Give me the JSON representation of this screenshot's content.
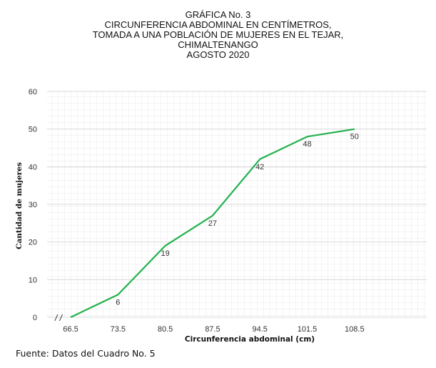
{
  "chart_data": {
    "type": "line",
    "title_lines": [
      "GRÁFICA No. 3",
      "CIRCUNFERENCIA ABDOMINAL  EN CENTÍMETROS,",
      "TOMADA A UNA POBLACIÓN DE MUJERES EN EL TEJAR,",
      "CHIMALTENANGO",
      "AGOSTO 2020"
    ],
    "xlabel": "Circunferencia abdominal (cm)",
    "ylabel": "Cantidad de mujeres",
    "categories": [
      "66.5",
      "73.5",
      "80.5",
      "87.5",
      "94.5",
      "101.5",
      "108.5"
    ],
    "values": [
      0,
      6,
      19,
      27,
      42,
      48,
      50
    ],
    "data_labels": [
      "",
      "6",
      "19",
      "27",
      "42",
      "48",
      "50"
    ],
    "ylim": [
      0,
      60
    ],
    "yticks": [
      "0",
      "10",
      "20",
      "30",
      "40",
      "50",
      "60"
    ],
    "axis_break_symbol": "/ /",
    "grid": true,
    "line_color": "#22b14c",
    "grid_color": "#d9d9d9"
  },
  "source_note": "Fuente: Datos del Cuadro No. 5"
}
